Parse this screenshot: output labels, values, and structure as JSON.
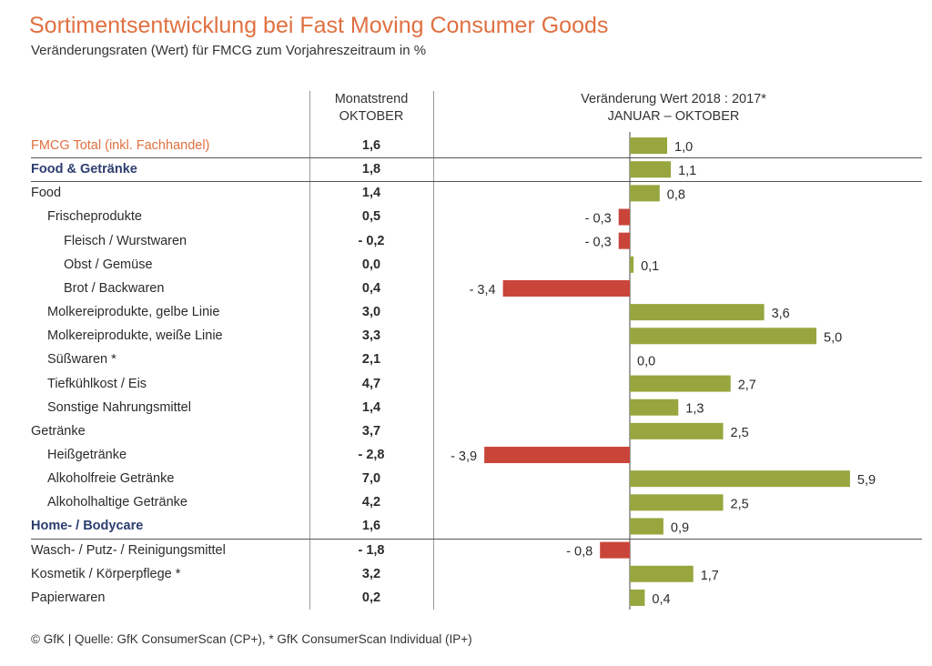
{
  "title": "Sortimentsentwicklung bei Fast Moving Consumer Goods",
  "subtitle": "Veränderungsraten (Wert) für FMCG zum Vorjahreszeitraum in %",
  "columns": {
    "monthly_line1": "Monatstrend",
    "monthly_line2": "OKTOBER",
    "change_line1": "Veränderung Wert 2018 : 2017*",
    "change_line2": "JANUAR – OKTOBER"
  },
  "colors": {
    "title": "#e07041",
    "group_label": "#2d3e70",
    "positive_bar": "#97a63e",
    "negative_bar": "#c9453a"
  },
  "footer": "© GfK | Quelle: GfK ConsumerScan (CP+), * GfK ConsumerScan Individual (IP+)",
  "chart_data": {
    "type": "bar",
    "orientation": "horizontal",
    "categories": [
      "FMCG Total (inkl. Fachhandel)",
      "Food & Getränke",
      "Food",
      "Frischeprodukte",
      "Fleisch / Wurstwaren",
      "Obst / Gemüse",
      "Brot / Backwaren",
      "Molkereiprodukte, gelbe Linie",
      "Molkereiprodukte, weiße Linie",
      "Süßwaren *",
      "Tiefkühlkost / Eis",
      "Sonstige Nahrungsmittel",
      "Getränke",
      "Heißgetränke",
      "Alkoholfreie Getränke",
      "Alkoholhaltige Getränke",
      "Home- / Bodycare",
      "Wasch- / Putz- / Reinigungsmittel",
      "Kosmetik / Körperpflege *",
      "Papierwaren"
    ],
    "rows": [
      {
        "label": "FMCG Total",
        "label_suffix": " (inkl. Fachhandel)",
        "style": "orange",
        "indent": 0,
        "monthly": "1,6",
        "value": 1.0,
        "value_label": "1,0"
      },
      {
        "label": "Food & Getränke",
        "label_suffix": "",
        "style": "blue",
        "indent": 0,
        "monthly": "1,8",
        "value": 1.1,
        "value_label": "1,1"
      },
      {
        "label": "Food",
        "label_suffix": "",
        "style": "normal",
        "indent": 0,
        "monthly": "1,4",
        "value": 0.8,
        "value_label": "0,8"
      },
      {
        "label": "Frischeprodukte",
        "label_suffix": "",
        "style": "normal",
        "indent": 1,
        "monthly": "0,5",
        "value": -0.3,
        "value_label": "- 0,3"
      },
      {
        "label": "Fleisch / Wurstwaren",
        "label_suffix": "",
        "style": "normal",
        "indent": 2,
        "monthly": "- 0,2",
        "value": -0.3,
        "value_label": "- 0,3"
      },
      {
        "label": "Obst / Gemüse",
        "label_suffix": "",
        "style": "normal",
        "indent": 2,
        "monthly": "0,0",
        "value": 0.1,
        "value_label": "0,1"
      },
      {
        "label": "Brot / Backwaren",
        "label_suffix": "",
        "style": "normal",
        "indent": 2,
        "monthly": "0,4",
        "value": -3.4,
        "value_label": "- 3,4"
      },
      {
        "label": "Molkereiprodukte, gelbe Linie",
        "label_suffix": "",
        "style": "normal",
        "indent": 1,
        "monthly": "3,0",
        "value": 3.6,
        "value_label": "3,6"
      },
      {
        "label": "Molkereiprodukte, weiße Linie",
        "label_suffix": "",
        "style": "normal",
        "indent": 1,
        "monthly": "3,3",
        "value": 5.0,
        "value_label": "5,0"
      },
      {
        "label": "Süßwaren *",
        "label_suffix": "",
        "style": "normal",
        "indent": 1,
        "monthly": "2,1",
        "value": 0.0,
        "value_label": "0,0"
      },
      {
        "label": "Tiefkühlkost / Eis",
        "label_suffix": "",
        "style": "normal",
        "indent": 1,
        "monthly": "4,7",
        "value": 2.7,
        "value_label": "2,7"
      },
      {
        "label": "Sonstige Nahrungsmittel",
        "label_suffix": "",
        "style": "normal",
        "indent": 1,
        "monthly": "1,4",
        "value": 1.3,
        "value_label": "1,3"
      },
      {
        "label": "Getränke",
        "label_suffix": "",
        "style": "normal",
        "indent": 0,
        "monthly": "3,7",
        "value": 2.5,
        "value_label": "2,5"
      },
      {
        "label": "Heißgetränke",
        "label_suffix": "",
        "style": "normal",
        "indent": 1,
        "monthly": "- 2,8",
        "value": -3.9,
        "value_label": "- 3,9"
      },
      {
        "label": "Alkoholfreie Getränke",
        "label_suffix": "",
        "style": "normal",
        "indent": 1,
        "monthly": "7,0",
        "value": 5.9,
        "value_label": "5,9"
      },
      {
        "label": "Alkoholhaltige Getränke",
        "label_suffix": "",
        "style": "normal",
        "indent": 1,
        "monthly": "4,2",
        "value": 2.5,
        "value_label": "2,5"
      },
      {
        "label": "Home- / Bodycare",
        "label_suffix": "",
        "style": "blue",
        "indent": 0,
        "monthly": "1,6",
        "value": 0.9,
        "value_label": "0,9"
      },
      {
        "label": "Wasch- / Putz- / Reinigungsmittel",
        "label_suffix": "",
        "style": "normal",
        "indent": 0,
        "monthly": "- 1,8",
        "value": -0.8,
        "value_label": "- 0,8"
      },
      {
        "label": "Kosmetik / Körperpflege *",
        "label_suffix": "",
        "style": "normal",
        "indent": 0,
        "monthly": "3,2",
        "value": 1.7,
        "value_label": "1,7"
      },
      {
        "label": "Papierwaren",
        "label_suffix": "",
        "style": "normal",
        "indent": 0,
        "monthly": "0,2",
        "value": 0.4,
        "value_label": "0,4"
      }
    ],
    "separators_after_rows": [
      0,
      1,
      16
    ],
    "xlim": [
      -3.9,
      5.9
    ]
  }
}
